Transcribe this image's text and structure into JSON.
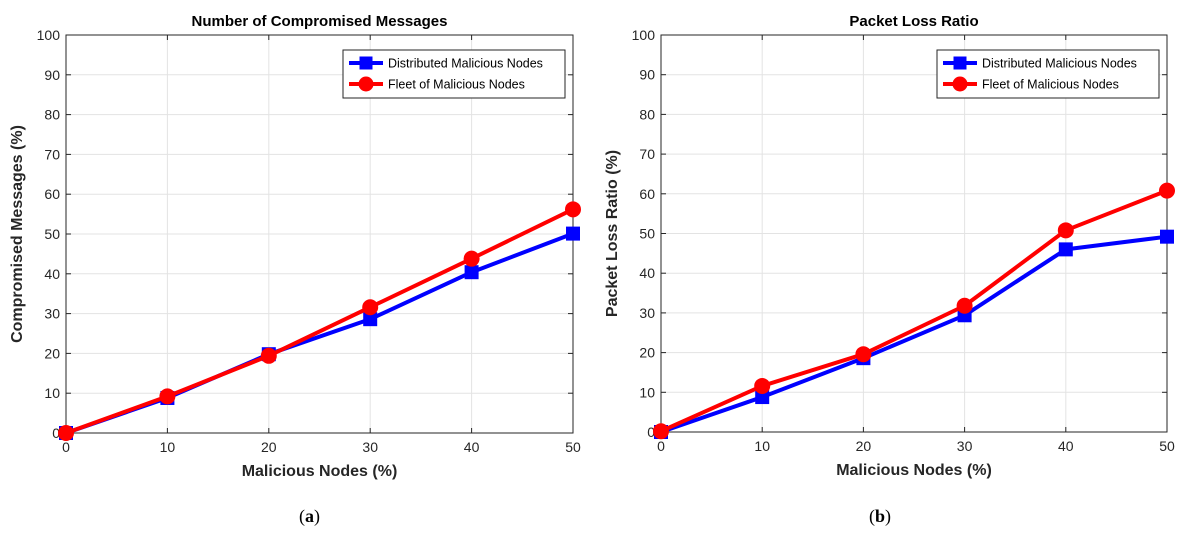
{
  "chart_data": [
    {
      "type": "line",
      "title": "Number of Compromised Messages",
      "xlabel": "Malicious Nodes (%)",
      "ylabel": "Compromised Messages (%)",
      "x": [
        0,
        10,
        20,
        30,
        40,
        50
      ],
      "xlim": [
        0,
        50
      ],
      "ylim": [
        0,
        100
      ],
      "xticks": [
        0,
        10,
        20,
        30,
        40,
        50
      ],
      "yticks": [
        0,
        10,
        20,
        30,
        40,
        50,
        60,
        70,
        80,
        90,
        100
      ],
      "grid": true,
      "legend_position": "top-right",
      "series": [
        {
          "name": "Distributed Malicious Nodes",
          "marker": "square",
          "color": "#0000ff",
          "values": [
            0,
            8.8,
            19.8,
            28.6,
            40.4,
            50.1
          ]
        },
        {
          "name": "Fleet of Malicious Nodes",
          "marker": "circle",
          "color": "#ff0000",
          "values": [
            0,
            9.2,
            19.4,
            31.6,
            43.8,
            56.2
          ]
        }
      ],
      "caption_letter": "a"
    },
    {
      "type": "line",
      "title": "Packet Loss Ratio",
      "xlabel": "Malicious Nodes (%)",
      "ylabel": "Packet Loss Ratio (%)",
      "x": [
        0,
        10,
        20,
        30,
        40,
        50
      ],
      "xlim": [
        0,
        50
      ],
      "ylim": [
        0,
        100
      ],
      "xticks": [
        0,
        10,
        20,
        30,
        40,
        50
      ],
      "yticks": [
        0,
        10,
        20,
        30,
        40,
        50,
        60,
        70,
        80,
        90,
        100
      ],
      "grid": true,
      "legend_position": "top-right",
      "series": [
        {
          "name": "Distributed Malicious Nodes",
          "marker": "square",
          "color": "#0000ff",
          "values": [
            0,
            8.8,
            18.6,
            29.4,
            46.0,
            49.2
          ]
        },
        {
          "name": "Fleet of Malicious Nodes",
          "marker": "circle",
          "color": "#ff0000",
          "values": [
            0.2,
            11.6,
            19.6,
            31.8,
            50.8,
            60.8
          ]
        }
      ],
      "caption_letter": "b"
    }
  ]
}
